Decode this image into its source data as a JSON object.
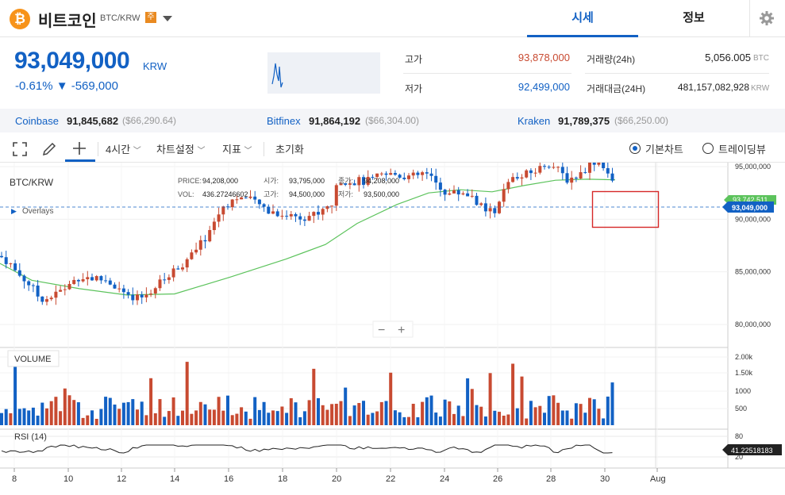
{
  "header": {
    "coin_logo": "₿",
    "coin_name": "비트코인",
    "pair": "BTC/KRW",
    "warning_badge": "주",
    "tabs": [
      {
        "label": "시세"
      },
      {
        "label": "정보"
      }
    ]
  },
  "ticker": {
    "price": "93,049,000",
    "unit": "KRW",
    "change": "-0.61% ▼ -569,000"
  },
  "stats": {
    "high_label": "고가",
    "high": "93,878,000",
    "low_label": "저가",
    "low": "92,499,000",
    "volume_label": "거래량(24h)",
    "volume": "5,056.005",
    "volume_unit": "BTC",
    "amount_label": "거래대금(24H)",
    "amount": "481,157,082,928",
    "amount_unit": "KRW"
  },
  "exchanges": [
    {
      "name": "Coinbase",
      "price": "91,845,682",
      "usd": "($66,290.64)"
    },
    {
      "name": "Bitfinex",
      "price": "91,864,192",
      "usd": "($66,304.00)"
    },
    {
      "name": "Kraken",
      "price": "91,789,375",
      "usd": "($66,250.00)"
    }
  ],
  "toolbar": {
    "interval": "4시간",
    "chart_settings": "차트설정",
    "indicators": "지표",
    "reset": "초기화",
    "basic_chart": "기본차트",
    "tradingview": "트레이딩뷰"
  },
  "chart": {
    "symbol": "BTC/KRW",
    "overlays": "Overlays",
    "info_price_label": "PRICE:",
    "info_price": "94,208,000",
    "info_vol_label": "VOL:",
    "info_vol": "436.27246602",
    "info_open_label": "시가:",
    "info_open": "93,795,000",
    "info_high_label": "고가:",
    "info_high": "94,500,000",
    "info_close_label": "종가:",
    "info_close": "94,208,000",
    "info_low_label": "저가:",
    "info_low": "93,500,000",
    "current_price_tag": "93,049,000",
    "ma_tag": "93,742,511",
    "volume_label": "VOLUME",
    "rsi_label": "RSI (14)",
    "rsi_tag": "41.22518183",
    "zoom_out": "−",
    "zoom_in": "+",
    "colors": {
      "up": "#c84a31",
      "down": "#1261c4",
      "ma": "#5cc35c"
    }
  },
  "chart_data": {
    "type": "candlestick",
    "price_axis": [
      "95,000,000",
      "90,000,000",
      "85,000,000",
      "80,000,000"
    ],
    "price_ticks": [
      95000000,
      90000000,
      85000000,
      80000000
    ],
    "volume_axis": [
      "2.00k",
      "1.50k",
      "1000",
      "500"
    ],
    "rsi_axis": [
      "80",
      "20"
    ],
    "x_axis": [
      "8",
      "10",
      "12",
      "14",
      "16",
      "18",
      "20",
      "22",
      "24",
      "26",
      "28",
      "30",
      "Aug"
    ],
    "current_price": 93049000
  }
}
